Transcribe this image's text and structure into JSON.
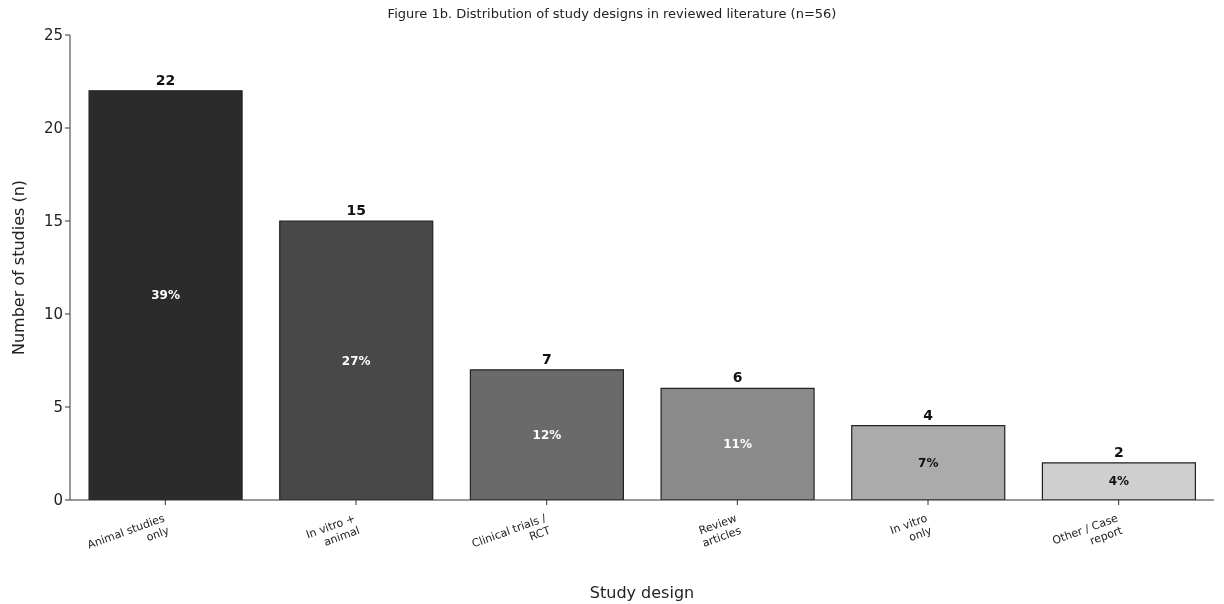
{
  "chart_data": {
    "type": "bar",
    "title": "Figure 1b. Distribution of study designs in reviewed literature (n=56)",
    "xlabel": "Study design",
    "ylabel": "Number of studies (n)",
    "categories": [
      "Animal studies\nonly",
      "In vitro +\nanimal",
      "Clinical trials /\nRCT",
      "Review\narticles",
      "In vitro\nonly",
      "Other / Case\nreport"
    ],
    "values": [
      22,
      15,
      7,
      6,
      4,
      2
    ],
    "colors": [
      "#2b2b2b",
      "#484848",
      "#6a6a6a",
      "#8a8a8a",
      "#ababab",
      "#cfcfcf"
    ],
    "ylim": [
      0,
      25
    ],
    "yticks": [
      0,
      5,
      10,
      15,
      20,
      25
    ],
    "data_labels": true,
    "annotations": [
      "39%",
      "27%",
      "12%",
      "11%",
      "7%",
      "4%"
    ]
  }
}
